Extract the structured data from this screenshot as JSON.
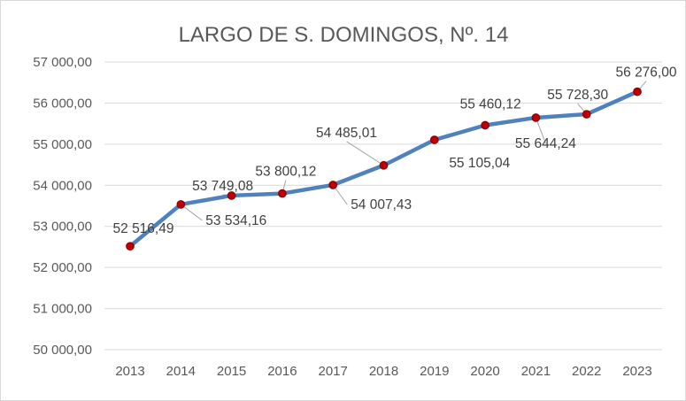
{
  "chart_data": {
    "type": "line",
    "title": "LARGO DE S. DOMINGOS, Nº. 14",
    "xlabel": "",
    "ylabel": "",
    "categories": [
      "2013",
      "2014",
      "2015",
      "2016",
      "2017",
      "2018",
      "2019",
      "2020",
      "2021",
      "2022",
      "2023"
    ],
    "series": [
      {
        "values": [
          52516.49,
          53534.16,
          53749.08,
          53800.12,
          54007.43,
          54485.01,
          55105.04,
          55460.12,
          55644.24,
          55728.3,
          56276.0
        ],
        "labels": [
          "52 516,49",
          "53 534,16",
          "53 749,08",
          "53 800,12",
          "54 007,43",
          "54 485,01",
          "55 105,04",
          "55 460,12",
          "55 644,24",
          "55 728,30",
          "56 276,00"
        ]
      }
    ],
    "ylim": [
      50000,
      57000
    ],
    "ytick_labels": [
      "50 000,00",
      "51 000,00",
      "52 000,00",
      "53 000,00",
      "54 000,00",
      "55 000,00",
      "56 000,00",
      "57 000,00"
    ],
    "grid": true,
    "legend": "none",
    "colors": {
      "line": "#4f81bd",
      "marker_fill": "#c00000",
      "marker_edge": "#8b0000",
      "grid": "#d9d9d9",
      "leader": "#a6a6a6"
    }
  }
}
